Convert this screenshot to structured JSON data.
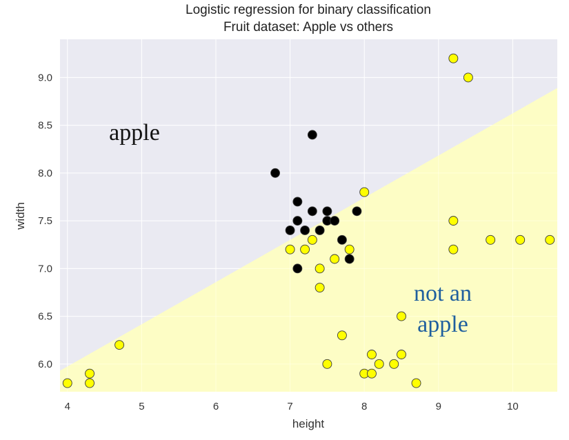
{
  "chart_data": {
    "type": "scatter",
    "title": "Logistic regression for binary classification",
    "subtitle": "Fruit dataset: Apple vs others",
    "xlabel": "height",
    "ylabel": "width",
    "xlim": [
      3.9,
      10.6
    ],
    "ylim": [
      5.71,
      9.4
    ],
    "xticks": [
      4,
      5,
      6,
      7,
      8,
      9,
      10
    ],
    "yticks": [
      6.0,
      6.5,
      7.0,
      7.5,
      8.0,
      8.5,
      9.0
    ],
    "grid": true,
    "annotations": [
      {
        "text": "apple",
        "color": "#111111"
      },
      {
        "lines": [
          "not an",
          "apple"
        ],
        "color": "#1f5f9e"
      }
    ],
    "decision_boundary": {
      "points": [
        [
          3.9,
          5.93
        ],
        [
          10.6,
          8.89
        ]
      ],
      "apple_region_color": "#eaeaf2",
      "other_region_color": "#ffffc0"
    },
    "series": [
      {
        "color": "#000000",
        "points": [
          [
            6.8,
            8.0
          ],
          [
            7.3,
            8.4
          ],
          [
            7.1,
            7.7
          ],
          [
            7.1,
            7.5
          ],
          [
            7.0,
            7.4
          ],
          [
            7.2,
            7.4
          ],
          [
            7.3,
            7.6
          ],
          [
            7.4,
            7.4
          ],
          [
            7.5,
            7.6
          ],
          [
            7.5,
            7.5
          ],
          [
            7.6,
            7.5
          ],
          [
            7.9,
            7.6
          ],
          [
            7.7,
            7.3
          ],
          [
            7.8,
            7.1
          ],
          [
            7.1,
            7.0
          ]
        ]
      },
      {
        "color": "#ffff00",
        "points": [
          [
            9.2,
            9.2
          ],
          [
            9.4,
            9.0
          ],
          [
            8.0,
            7.8
          ],
          [
            9.2,
            7.5
          ],
          [
            9.2,
            7.2
          ],
          [
            9.7,
            7.3
          ],
          [
            10.1,
            7.3
          ],
          [
            10.5,
            7.3
          ],
          [
            7.0,
            7.2
          ],
          [
            7.2,
            7.2
          ],
          [
            7.3,
            7.3
          ],
          [
            7.8,
            7.2
          ],
          [
            7.6,
            7.1
          ],
          [
            7.4,
            7.0
          ],
          [
            7.4,
            6.8
          ],
          [
            8.5,
            6.5
          ],
          [
            7.7,
            6.3
          ],
          [
            4.7,
            6.2
          ],
          [
            8.1,
            6.1
          ],
          [
            8.5,
            6.1
          ],
          [
            7.5,
            6.0
          ],
          [
            8.2,
            6.0
          ],
          [
            8.4,
            6.0
          ],
          [
            8.0,
            5.9
          ],
          [
            8.1,
            5.9
          ],
          [
            4.3,
            5.9
          ],
          [
            4.0,
            5.8
          ],
          [
            4.3,
            5.8
          ],
          [
            8.7,
            5.8
          ]
        ]
      }
    ]
  }
}
